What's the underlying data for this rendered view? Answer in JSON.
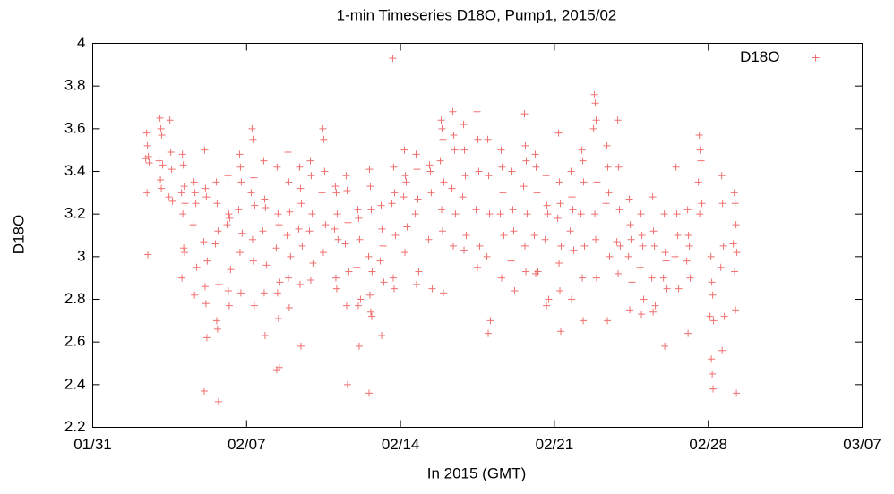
{
  "chart_data": {
    "type": "scatter",
    "title": "1-min Timeseries D18O, Pump1, 2015/02",
    "x_label": "In 2015 (GMT)",
    "y_label": "D18O",
    "legend": "upper right",
    "xlim": [
      0,
      35
    ],
    "xticks": [
      {
        "value": 0,
        "label": "01/31"
      },
      {
        "value": 7,
        "label": "02/07"
      },
      {
        "value": 14,
        "label": "02/14"
      },
      {
        "value": 21,
        "label": "02/21"
      },
      {
        "value": 28,
        "label": "02/28"
      },
      {
        "value": 35,
        "label": "03/07"
      }
    ],
    "ylim": [
      2.2,
      4
    ],
    "yticks": [
      2.2,
      2.4,
      2.6,
      2.8,
      3,
      3.2,
      3.4,
      3.6,
      3.8,
      4
    ],
    "x": [
      2.45,
      2.49,
      2.53,
      2.41,
      2.57,
      2.47,
      2.51,
      3.06,
      3.1,
      3.14,
      3.02,
      3.18,
      3.08,
      3.12,
      3.51,
      3.55,
      3.59,
      3.47,
      3.63,
      4.08,
      4.12,
      4.16,
      4.04,
      4.2,
      4.1,
      4.14,
      4.18,
      4.06,
      4.61,
      4.65,
      4.69,
      4.57,
      4.73,
      4.63,
      5.09,
      5.13,
      5.17,
      5.05,
      5.21,
      5.11,
      5.15,
      5.19,
      5.07,
      5.62,
      5.66,
      5.7,
      5.58,
      5.74,
      5.64,
      5.68,
      5.72,
      6.15,
      6.19,
      6.23,
      6.11,
      6.27,
      6.17,
      6.21,
      6.68,
      6.72,
      6.76,
      6.64,
      6.8,
      6.7,
      6.74,
      7.25,
      7.29,
      7.33,
      7.21,
      7.37,
      7.27,
      7.31,
      7.35,
      7.78,
      7.82,
      7.86,
      7.74,
      7.9,
      7.8,
      7.84,
      8.39,
      8.43,
      8.47,
      8.35,
      8.51,
      8.41,
      8.45,
      8.49,
      8.37,
      8.88,
      8.92,
      8.96,
      8.84,
      9.0,
      8.9,
      8.94,
      9.41,
      9.45,
      9.49,
      9.37,
      9.53,
      9.43,
      9.47,
      9.9,
      9.94,
      9.98,
      9.86,
      10.02,
      9.92,
      10.47,
      10.51,
      10.55,
      10.43,
      10.59,
      10.49,
      11.04,
      11.08,
      11.12,
      11.0,
      11.16,
      11.06,
      11.1,
      11.53,
      11.57,
      11.61,
      11.49,
      11.65,
      11.55,
      11.59,
      12.06,
      12.1,
      12.14,
      12.02,
      12.18,
      12.08,
      12.12,
      12.59,
      12.63,
      12.67,
      12.55,
      12.71,
      12.61,
      12.65,
      12.69,
      12.57,
      13.12,
      13.16,
      13.2,
      13.08,
      13.24,
      13.14,
      13.65,
      13.69,
      13.73,
      13.61,
      13.77,
      13.67,
      13.71,
      14.18,
      14.22,
      14.26,
      14.14,
      14.3,
      14.2,
      14.71,
      14.75,
      14.79,
      14.67,
      14.83,
      14.73,
      15.32,
      15.36,
      15.4,
      15.28,
      15.44,
      15.85,
      15.89,
      15.93,
      15.81,
      15.97,
      15.87,
      15.91,
      15.95,
      16.38,
      16.42,
      16.46,
      16.34,
      16.5,
      16.4,
      16.87,
      16.91,
      16.95,
      16.83,
      16.99,
      16.89,
      17.48,
      17.52,
      17.56,
      17.44,
      17.6,
      17.5,
      17.97,
      18.01,
      18.05,
      17.93,
      18.09,
      17.99,
      18.58,
      18.62,
      18.66,
      18.54,
      18.7,
      18.6,
      19.07,
      19.11,
      19.15,
      19.03,
      19.19,
      19.64,
      19.68,
      19.72,
      19.6,
      19.76,
      19.66,
      19.7,
      20.13,
      20.17,
      20.21,
      20.09,
      20.25,
      20.15,
      20.62,
      20.66,
      20.7,
      20.58,
      20.74,
      20.64,
      21.19,
      21.23,
      21.27,
      21.15,
      21.31,
      21.21,
      21.25,
      21.29,
      21.76,
      21.8,
      21.84,
      21.72,
      21.88,
      21.78,
      22.25,
      22.29,
      22.33,
      22.21,
      22.37,
      22.27,
      22.31,
      22.82,
      22.86,
      22.9,
      22.78,
      22.94,
      22.84,
      22.88,
      22.92,
      23.39,
      23.43,
      23.47,
      23.35,
      23.51,
      23.41,
      23.88,
      23.92,
      23.96,
      23.84,
      24.0,
      23.9,
      24.41,
      24.45,
      24.49,
      24.37,
      24.53,
      24.43,
      24.94,
      24.98,
      25.02,
      24.9,
      25.06,
      24.96,
      25.47,
      25.51,
      25.55,
      25.43,
      25.59,
      25.49,
      26.0,
      26.04,
      26.08,
      25.96,
      26.12,
      26.02,
      26.53,
      26.57,
      26.61,
      26.49,
      26.65,
      27.06,
      27.1,
      27.14,
      27.02,
      27.18,
      27.08,
      27.59,
      27.63,
      27.67,
      27.55,
      27.71,
      27.61,
      28.12,
      28.16,
      28.2,
      28.08,
      28.24,
      28.14,
      28.18,
      28.22,
      28.61,
      28.65,
      28.69,
      28.57,
      28.73,
      28.63,
      29.18,
      29.22,
      29.26,
      29.14,
      29.3,
      29.2,
      29.24,
      29.28
    ],
    "series": [
      {
        "name": "D18O",
        "color": "#f07070",
        "values": [
          3.58,
          3.52,
          3.47,
          3.46,
          3.44,
          3.3,
          3.01,
          3.65,
          3.6,
          3.57,
          3.45,
          3.43,
          3.36,
          3.32,
          3.64,
          3.49,
          3.41,
          3.28,
          3.26,
          3.48,
          3.43,
          3.33,
          3.3,
          3.25,
          3.2,
          3.04,
          3.02,
          2.9,
          3.35,
          3.3,
          3.25,
          3.15,
          2.95,
          2.82,
          3.5,
          3.32,
          3.28,
          3.07,
          2.98,
          2.86,
          2.78,
          2.62,
          2.37,
          3.35,
          3.25,
          3.12,
          3.06,
          2.87,
          2.7,
          2.66,
          2.32,
          3.38,
          3.2,
          3.18,
          3.15,
          2.94,
          2.84,
          2.77,
          3.48,
          3.42,
          3.35,
          3.22,
          3.11,
          3.02,
          2.83,
          3.6,
          3.55,
          3.37,
          3.3,
          3.24,
          3.08,
          2.98,
          2.77,
          3.45,
          3.27,
          3.23,
          3.12,
          2.96,
          2.83,
          2.63,
          3.42,
          3.2,
          3.15,
          3.04,
          2.88,
          2.83,
          2.71,
          2.48,
          2.47,
          3.49,
          3.35,
          3.21,
          3.1,
          3.0,
          2.9,
          2.76,
          3.42,
          3.32,
          3.25,
          3.13,
          3.05,
          2.87,
          2.58,
          3.45,
          3.38,
          3.2,
          3.12,
          2.97,
          2.89,
          3.6,
          3.55,
          3.4,
          3.3,
          3.15,
          3.02,
          3.33,
          3.3,
          3.2,
          3.13,
          3.08,
          2.9,
          2.85,
          3.38,
          3.31,
          3.16,
          3.06,
          2.93,
          2.77,
          2.4,
          3.22,
          3.18,
          3.08,
          2.95,
          2.8,
          2.77,
          2.58,
          3.41,
          3.33,
          3.22,
          3.0,
          2.93,
          2.82,
          2.74,
          2.72,
          2.36,
          3.24,
          3.13,
          3.05,
          2.98,
          2.88,
          2.63,
          3.93,
          3.42,
          3.3,
          3.25,
          3.1,
          2.9,
          2.85,
          3.5,
          3.38,
          3.35,
          3.28,
          3.14,
          3.02,
          3.48,
          3.41,
          3.27,
          3.2,
          2.93,
          2.87,
          3.43,
          3.4,
          3.3,
          3.08,
          2.85,
          3.64,
          3.6,
          3.55,
          3.45,
          3.35,
          3.22,
          3.12,
          2.83,
          3.68,
          3.57,
          3.5,
          3.32,
          3.2,
          3.05,
          3.62,
          3.5,
          3.38,
          3.28,
          3.1,
          3.03,
          3.68,
          3.55,
          3.4,
          3.22,
          3.05,
          2.95,
          3.55,
          3.38,
          3.2,
          3.0,
          2.7,
          2.64,
          3.5,
          3.42,
          3.3,
          3.2,
          3.1,
          2.9,
          3.4,
          3.22,
          3.12,
          2.98,
          2.84,
          3.67,
          3.52,
          3.45,
          3.33,
          3.2,
          3.05,
          2.93,
          3.48,
          3.42,
          3.3,
          3.1,
          2.93,
          2.92,
          3.38,
          3.24,
          3.2,
          3.08,
          2.8,
          2.77,
          3.58,
          3.35,
          3.25,
          3.18,
          3.05,
          2.97,
          2.84,
          2.65,
          3.4,
          3.28,
          3.22,
          3.12,
          3.03,
          2.8,
          3.5,
          3.45,
          3.35,
          3.2,
          3.05,
          2.9,
          2.7,
          3.76,
          3.72,
          3.64,
          3.6,
          3.35,
          3.2,
          3.08,
          2.9,
          3.52,
          3.42,
          3.3,
          3.25,
          3.0,
          2.7,
          3.64,
          3.42,
          3.22,
          3.07,
          3.05,
          2.92,
          3.27,
          3.15,
          3.08,
          3.0,
          2.88,
          2.75,
          3.2,
          3.1,
          3.05,
          2.95,
          2.8,
          2.73,
          3.28,
          3.12,
          3.05,
          2.9,
          2.77,
          2.74,
          3.2,
          3.02,
          2.98,
          2.9,
          2.85,
          2.58,
          3.42,
          3.2,
          3.1,
          3.0,
          2.85,
          3.22,
          3.1,
          3.05,
          2.98,
          2.9,
          2.64,
          3.57,
          3.5,
          3.45,
          3.35,
          3.25,
          3.2,
          3.0,
          2.88,
          2.82,
          2.72,
          2.7,
          2.52,
          2.45,
          2.38,
          3.38,
          3.25,
          3.05,
          2.95,
          2.72,
          2.56,
          3.3,
          3.25,
          3.15,
          3.06,
          3.02,
          2.93,
          2.75,
          2.36
        ]
      }
    ]
  }
}
